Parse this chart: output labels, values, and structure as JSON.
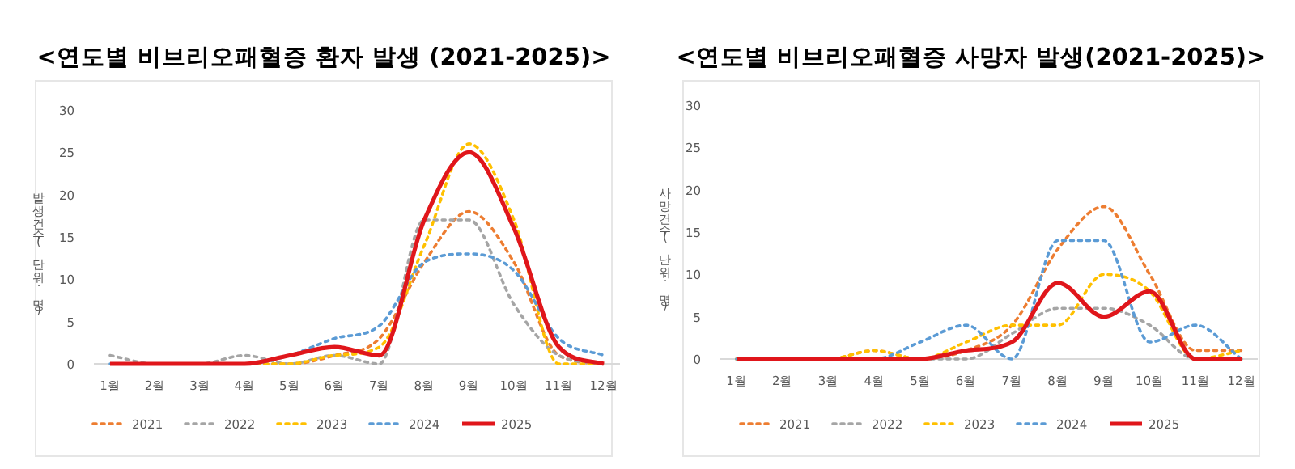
{
  "chart_data": [
    {
      "type": "line",
      "title": "<연도별 비브리오패혈증 환자 발생 (2021-2025)>",
      "ylabel": "발생건수(단위:명)",
      "categories": [
        "1월",
        "2월",
        "3월",
        "4월",
        "5월",
        "6월",
        "7월",
        "8월",
        "9월",
        "10월",
        "11월",
        "12월"
      ],
      "ylim": [
        0,
        30
      ],
      "yticks": [
        0,
        5,
        10,
        15,
        20,
        25,
        30
      ],
      "legend": "bottom",
      "series": [
        {
          "name": "2021",
          "color": "#ed7d31",
          "line_style": "dotted",
          "values": [
            null,
            null,
            0,
            0,
            0,
            1,
            3,
            12,
            18,
            12,
            1,
            0
          ]
        },
        {
          "name": "2022",
          "color": "#a5a5a5",
          "line_style": "dotted",
          "values": [
            1,
            0,
            0,
            1,
            0,
            1,
            0,
            17,
            17,
            7,
            1,
            0
          ]
        },
        {
          "name": "2023",
          "color": "#ffc000",
          "line_style": "dotted",
          "values": [
            null,
            null,
            0,
            0,
            0,
            1,
            2,
            14,
            26,
            17,
            0,
            0
          ]
        },
        {
          "name": "2024",
          "color": "#5b9bd5",
          "line_style": "dotted",
          "values": [
            0,
            0,
            0,
            0,
            1,
            3,
            4.5,
            12,
            13,
            11,
            3,
            1
          ]
        },
        {
          "name": "2025",
          "color": "#e0161b",
          "line_style": "solid",
          "values": [
            0,
            0,
            0,
            0,
            1,
            2,
            1,
            17,
            25,
            16,
            2,
            0
          ]
        }
      ]
    },
    {
      "type": "line",
      "title": "<연도별 비브리오패혈증 사망자 발생(2021-2025)>",
      "ylabel": "사망건수(단위:명)",
      "categories": [
        "1월",
        "2월",
        "3월",
        "4월",
        "5월",
        "6월",
        "7월",
        "8월",
        "9월",
        "10월",
        "11월",
        "12월"
      ],
      "ylim": [
        0,
        30
      ],
      "yticks": [
        0,
        5,
        10,
        15,
        20,
        25,
        30
      ],
      "legend": "bottom",
      "series": [
        {
          "name": "2021",
          "color": "#ed7d31",
          "line_style": "dotted",
          "values": [
            0,
            0,
            0,
            1,
            0,
            1,
            4,
            13,
            18,
            10,
            1,
            1
          ]
        },
        {
          "name": "2022",
          "color": "#a5a5a5",
          "line_style": "dotted",
          "values": [
            0,
            0,
            0,
            0,
            0,
            0,
            3,
            6,
            6,
            4,
            0,
            0
          ]
        },
        {
          "name": "2023",
          "color": "#ffc000",
          "line_style": "dotted",
          "values": [
            0,
            0,
            0,
            1,
            0,
            2,
            4,
            4,
            10,
            8,
            0,
            1
          ]
        },
        {
          "name": "2024",
          "color": "#5b9bd5",
          "line_style": "dotted",
          "values": [
            0,
            0,
            0,
            0,
            2,
            4,
            0,
            14,
            14,
            2,
            4,
            0
          ]
        },
        {
          "name": "2025",
          "color": "#e0161b",
          "line_style": "solid",
          "values": [
            0,
            0,
            0,
            0,
            0,
            1,
            2,
            9,
            5,
            8,
            0,
            0
          ]
        }
      ]
    }
  ]
}
